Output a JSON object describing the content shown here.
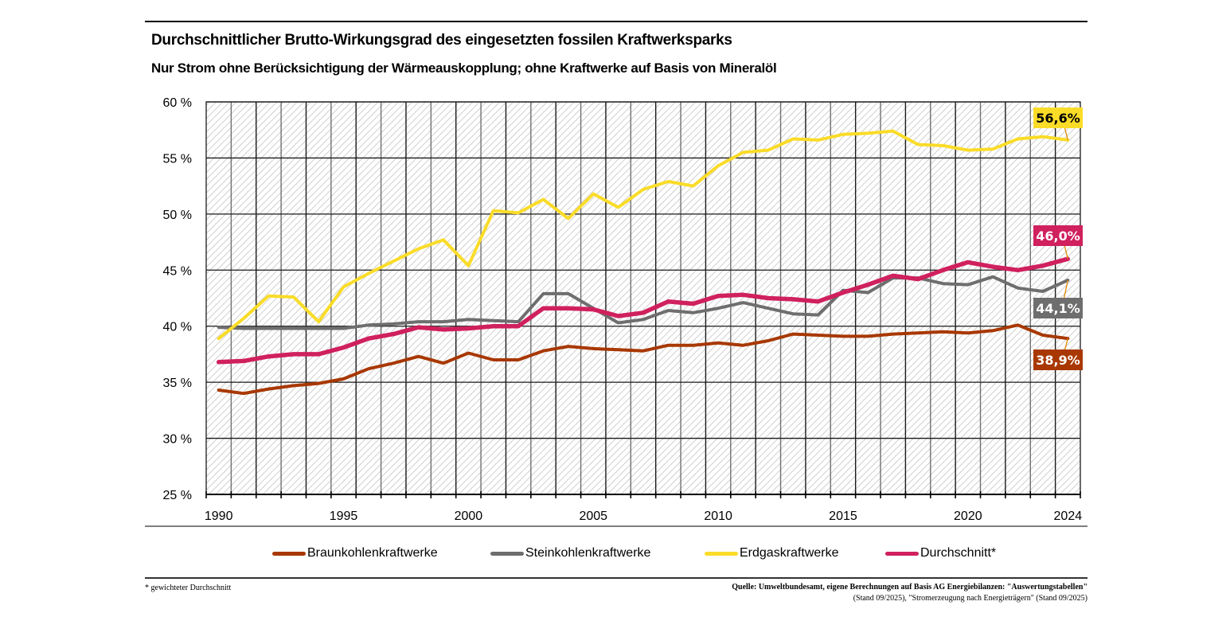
{
  "header": {
    "title": "Durchschnittlicher Brutto-Wirkungsgrad des eingesetzten fossilen Kraftwerksparks",
    "subtitle": "Nur Strom ohne Berücksichtigung der Wärmeauskopplung; ohne Kraftwerke auf Basis von Mineralöl"
  },
  "footer": {
    "footnote": "* gewichteter Durchschnitt",
    "source_line1": "Quelle: Umweltbundesamt, eigene Berechnungen auf Basis AG Energiebilanzen: \"Auswertungstabellen\"",
    "source_line2": "(Stand 09/2025), \"Stromerzeugung nach Energieträgern\" (Stand 09/2025)"
  },
  "chart_data": {
    "type": "line",
    "title": "Durchschnittlicher Brutto-Wirkungsgrad des eingesetzten fossilen Kraftwerksparks",
    "subtitle": "Nur Strom ohne Berücksichtigung der Wärmeauskopplung; ohne Kraftwerke auf Basis von Mineralöl",
    "xlabel": "",
    "ylabel": "",
    "ylim": [
      25,
      60
    ],
    "yticks": [
      25,
      30,
      35,
      40,
      45,
      50,
      55,
      60
    ],
    "ytick_labels": [
      "25 %",
      "30 %",
      "35 %",
      "40 %",
      "45 %",
      "50 %",
      "55 %",
      "60 %"
    ],
    "xtick_labels": [
      "1990",
      "1995",
      "2000",
      "2005",
      "2010",
      "2015",
      "2020",
      "2024"
    ],
    "grid": true,
    "legend_position": "bottom",
    "x": [
      1990,
      1991,
      1992,
      1993,
      1994,
      1995,
      1996,
      1997,
      1998,
      1999,
      2000,
      2001,
      2002,
      2003,
      2004,
      2005,
      2006,
      2007,
      2008,
      2009,
      2010,
      2011,
      2012,
      2013,
      2014,
      2015,
      2016,
      2017,
      2018,
      2019,
      2020,
      2021,
      2022,
      2023,
      2024
    ],
    "series": [
      {
        "name": "Braunkohlenkraftwerke",
        "color": "#a83800",
        "end_label": "38,9%",
        "values": [
          34.3,
          34.0,
          34.4,
          34.7,
          34.9,
          35.3,
          36.2,
          36.7,
          37.3,
          36.7,
          37.6,
          37.0,
          37.0,
          37.8,
          38.2,
          38.0,
          37.9,
          37.8,
          38.3,
          38.3,
          38.5,
          38.3,
          38.7,
          39.3,
          39.2,
          39.1,
          39.1,
          39.3,
          39.4,
          39.5,
          39.4,
          39.6,
          40.1,
          39.2,
          38.9
        ]
      },
      {
        "name": "Steinkohlenkraftwerke",
        "color": "#6e6e6e",
        "end_label": "44,1%",
        "values": [
          39.9,
          39.8,
          39.8,
          39.8,
          39.8,
          39.8,
          40.1,
          40.2,
          40.4,
          40.4,
          40.6,
          40.5,
          40.4,
          42.9,
          42.9,
          41.6,
          40.3,
          40.6,
          41.4,
          41.2,
          41.6,
          42.1,
          41.6,
          41.1,
          41.0,
          43.2,
          43.0,
          44.3,
          44.3,
          43.8,
          43.7,
          44.4,
          43.4,
          43.1,
          44.1
        ]
      },
      {
        "name": "Erdgaskraftwerke",
        "color": "#fadc28",
        "end_label": "56,6%",
        "values": [
          38.9,
          40.7,
          42.7,
          42.6,
          40.4,
          43.5,
          44.7,
          45.8,
          46.9,
          47.7,
          45.4,
          50.3,
          50.1,
          51.3,
          49.6,
          51.8,
          50.6,
          52.2,
          52.9,
          52.5,
          54.3,
          55.5,
          55.7,
          56.7,
          56.6,
          57.1,
          57.2,
          57.4,
          56.2,
          56.1,
          55.7,
          55.8,
          56.7,
          56.9,
          56.6
        ]
      },
      {
        "name": "Durchschnitt*",
        "color": "#d0205e",
        "end_label": "46,0%",
        "values": [
          36.8,
          36.9,
          37.3,
          37.5,
          37.5,
          38.1,
          38.9,
          39.3,
          39.9,
          39.7,
          39.8,
          40.0,
          40.0,
          41.6,
          41.6,
          41.5,
          40.9,
          41.2,
          42.2,
          42.0,
          42.7,
          42.8,
          42.5,
          42.4,
          42.2,
          43.0,
          43.7,
          44.5,
          44.2,
          45.0,
          45.7,
          45.3,
          45.0,
          45.4,
          46.0
        ]
      }
    ]
  }
}
